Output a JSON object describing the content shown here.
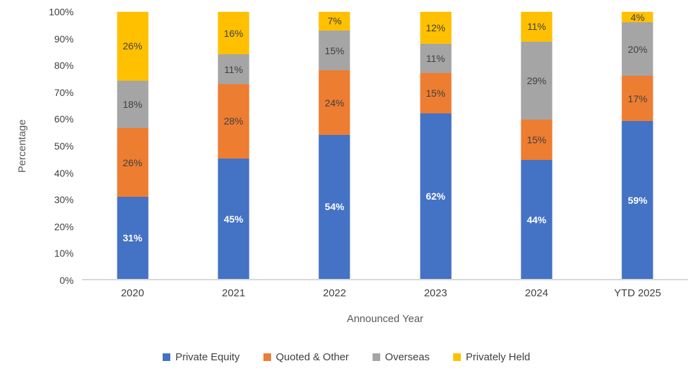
{
  "chart_data": {
    "type": "bar",
    "subtype": "stacked-100",
    "title": "",
    "xlabel": "Announced Year",
    "ylabel": "Percentage",
    "categories": [
      "2020",
      "2021",
      "2022",
      "2023",
      "2024",
      "YTD 2025"
    ],
    "series": [
      {
        "name": "Private Equity",
        "color": "#4472C4",
        "label_color": "#FFFFFF",
        "label_bold": true,
        "values": [
          31,
          45,
          54,
          62,
          44,
          59
        ]
      },
      {
        "name": "Quoted & Other",
        "color": "#ED7D31",
        "label_color": "#404040",
        "label_bold": false,
        "values": [
          26,
          28,
          24,
          15,
          15,
          17
        ]
      },
      {
        "name": "Overseas",
        "color": "#A5A5A5",
        "label_color": "#404040",
        "label_bold": false,
        "values": [
          18,
          11,
          15,
          11,
          29,
          20
        ]
      },
      {
        "name": "Privately Held",
        "color": "#FFC000",
        "label_color": "#404040",
        "label_bold": false,
        "values": [
          26,
          16,
          7,
          12,
          11,
          4
        ]
      }
    ],
    "value_suffix": "%",
    "y_ticks": [
      "0%",
      "10%",
      "20%",
      "30%",
      "40%",
      "50%",
      "60%",
      "70%",
      "80%",
      "90%",
      "100%"
    ],
    "ylim": [
      0,
      100
    ],
    "grid": false,
    "legend_position": "bottom",
    "axis_line_color": "#D9D9D9",
    "tick_text_color": "#404040",
    "axis_title_color": "#595959"
  }
}
